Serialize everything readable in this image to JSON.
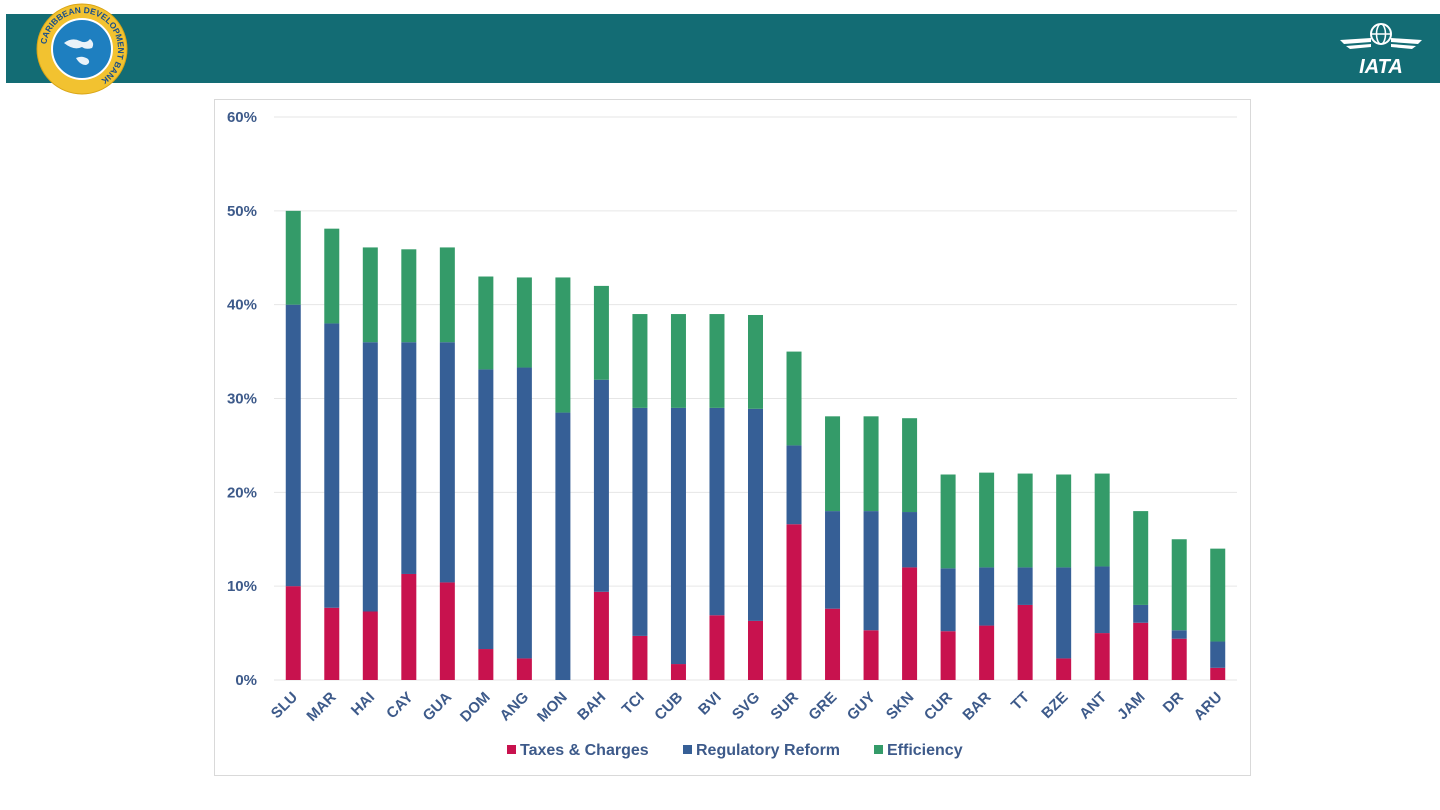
{
  "header": {
    "left_logo": {
      "ring_text": "CARIBBEAN DEVELOPMENT BANK"
    },
    "right_logo": {
      "text": "IATA"
    }
  },
  "colors": {
    "band": "#136c74",
    "taxes": "#c8124e",
    "regulatory": "#365f96",
    "efficiency": "#349b69",
    "axis_text": "#3d5a8a",
    "grid": "#e6e6e6"
  },
  "chart_data": {
    "type": "bar",
    "stacked": true,
    "categories": [
      "SLU",
      "MAR",
      "HAI",
      "CAY",
      "GUA",
      "DOM",
      "ANG",
      "MON",
      "BAH",
      "TCI",
      "CUB",
      "BVI",
      "SVG",
      "SUR",
      "GRE",
      "GUY",
      "SKN",
      "CUR",
      "BAR",
      "TT",
      "BZE",
      "ANT",
      "JAM",
      "DR",
      "ARU"
    ],
    "series": [
      {
        "name": "Taxes & Charges",
        "color": "#c8124e",
        "values": [
          10,
          7.7,
          7.3,
          11.3,
          10.4,
          3.3,
          2.3,
          0,
          9.4,
          4.7,
          1.7,
          6.9,
          6.3,
          16.6,
          7.6,
          5.3,
          12,
          5.2,
          5.8,
          8,
          2.3,
          5,
          6.1,
          4.4,
          1.3
        ]
      },
      {
        "name": "Regulatory Reform",
        "color": "#365f96",
        "values": [
          30,
          30.3,
          28.7,
          24.7,
          25.6,
          29.8,
          31,
          28.5,
          22.6,
          24.3,
          27.3,
          22.1,
          22.6,
          8.4,
          10.4,
          12.7,
          5.9,
          6.7,
          6.2,
          4,
          9.7,
          7.1,
          1.9,
          0.9,
          2.8
        ]
      },
      {
        "name": "Efficiency",
        "color": "#349b69",
        "values": [
          10,
          10.1,
          10.1,
          9.9,
          10.1,
          9.9,
          9.6,
          14.4,
          10,
          10,
          10,
          10,
          10,
          10,
          10.1,
          10.1,
          10,
          10,
          10.1,
          10,
          9.9,
          9.9,
          10,
          9.7,
          9.9
        ]
      }
    ],
    "y_ticks": [
      "0%",
      "10%",
      "20%",
      "30%",
      "40%",
      "50%",
      "60%"
    ],
    "ylim": [
      0,
      60
    ],
    "title": "",
    "xlabel": "",
    "ylabel": "",
    "grid": true,
    "legend_position": "bottom"
  }
}
